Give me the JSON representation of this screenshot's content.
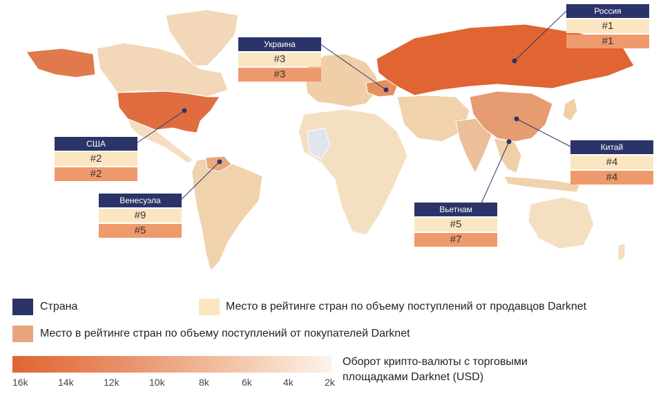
{
  "colors": {
    "country_label_bg": "#2b3468",
    "seller_rank_bg": "#fbe6c1",
    "buyer_rank_bg": "#ef9a6c",
    "land_low": "#f4dfc0",
    "land_high": "#e06532",
    "no_data": "#dfe6ee"
  },
  "callouts": [
    {
      "country": "Россия",
      "seller_rank": "#1",
      "buyer_rank": "#1"
    },
    {
      "country": "Украина",
      "seller_rank": "#3",
      "buyer_rank": "#3"
    },
    {
      "country": "США",
      "seller_rank": "#2",
      "buyer_rank": "#2"
    },
    {
      "country": "Венесуэла",
      "seller_rank": "#9",
      "buyer_rank": "#5"
    },
    {
      "country": "Китай",
      "seller_rank": "#4",
      "buyer_rank": "#4"
    },
    {
      "country": "Вьетнам",
      "seller_rank": "#5",
      "buyer_rank": "#7"
    }
  ],
  "legend": {
    "country": "Страна",
    "seller": "Место в рейтинге стран по объему поступлений от продавцов Darknet",
    "buyer": "Место в рейтинге стран по объему поступлений от покупателей Darknet",
    "gradient_title_line1": "Оборот крипто-валюты с торговыми",
    "gradient_title_line2": "площадками Darknet (USD)",
    "ticks": [
      "16k",
      "14k",
      "12k",
      "10k",
      "8k",
      "6k",
      "4k",
      "2k"
    ]
  }
}
